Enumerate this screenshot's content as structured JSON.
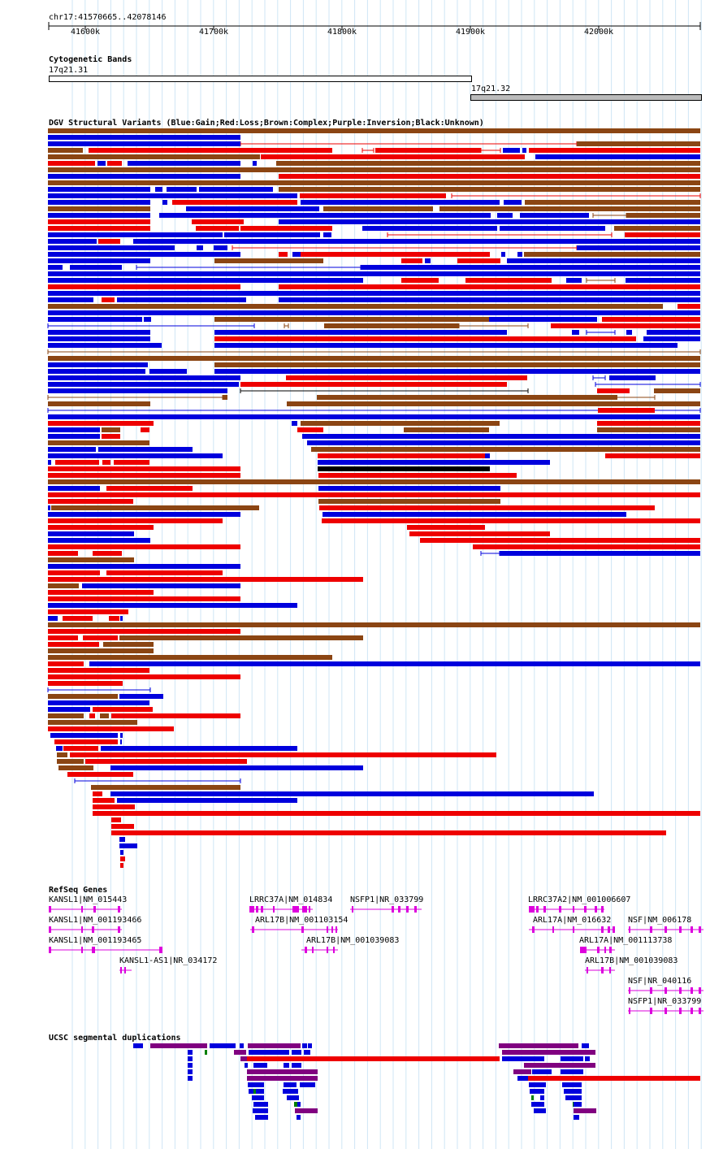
{
  "header": {
    "coords": "chr17:41570665..42078146",
    "ticks": [
      "41600k",
      "41700k",
      "41800k",
      "41900k",
      "42000k"
    ]
  },
  "cyto": {
    "title": "Cytogenetic Bands",
    "band1": "17q21.31",
    "band2": "17q21.32"
  },
  "dgv": {
    "title": "DGV Structural Variants (Blue:Gain;Red:Loss;Brown:Complex;Purple:Inversion;Black:Unknown)",
    "colors": {
      "gain": "#0000dd",
      "loss": "#ee0000",
      "complex": "#8b4513",
      "inversion": "#800080",
      "unknown": "#000000"
    }
  },
  "refseq": {
    "title": "RefSeq Genes",
    "color": "#dd00dd",
    "genes": [
      "KANSL1|NM_015443",
      "KANSL1|NM_001193466",
      "KANSL1|NM_001193465",
      "KANSL1-AS1|NR_034172",
      "LRRC37A|NM_014834",
      "ARL17B|NM_001103154",
      "ARL17B|NM_001039083",
      "NSFP1|NR_033799",
      "LRRC37A2|NM_001006607",
      "ARL17A|NM_016632",
      "ARL17A|NM_001113738",
      "ARL17B|NM_001039083",
      "NSF|NM_006178",
      "NSF|NR_040116",
      "NSFP1|NR_033799"
    ]
  },
  "segdup": {
    "title": "UCSC segmental duplications",
    "colors": {
      "blue": "#0000dd",
      "purple": "#800080",
      "red": "#ee0000",
      "green": "#008000"
    }
  }
}
